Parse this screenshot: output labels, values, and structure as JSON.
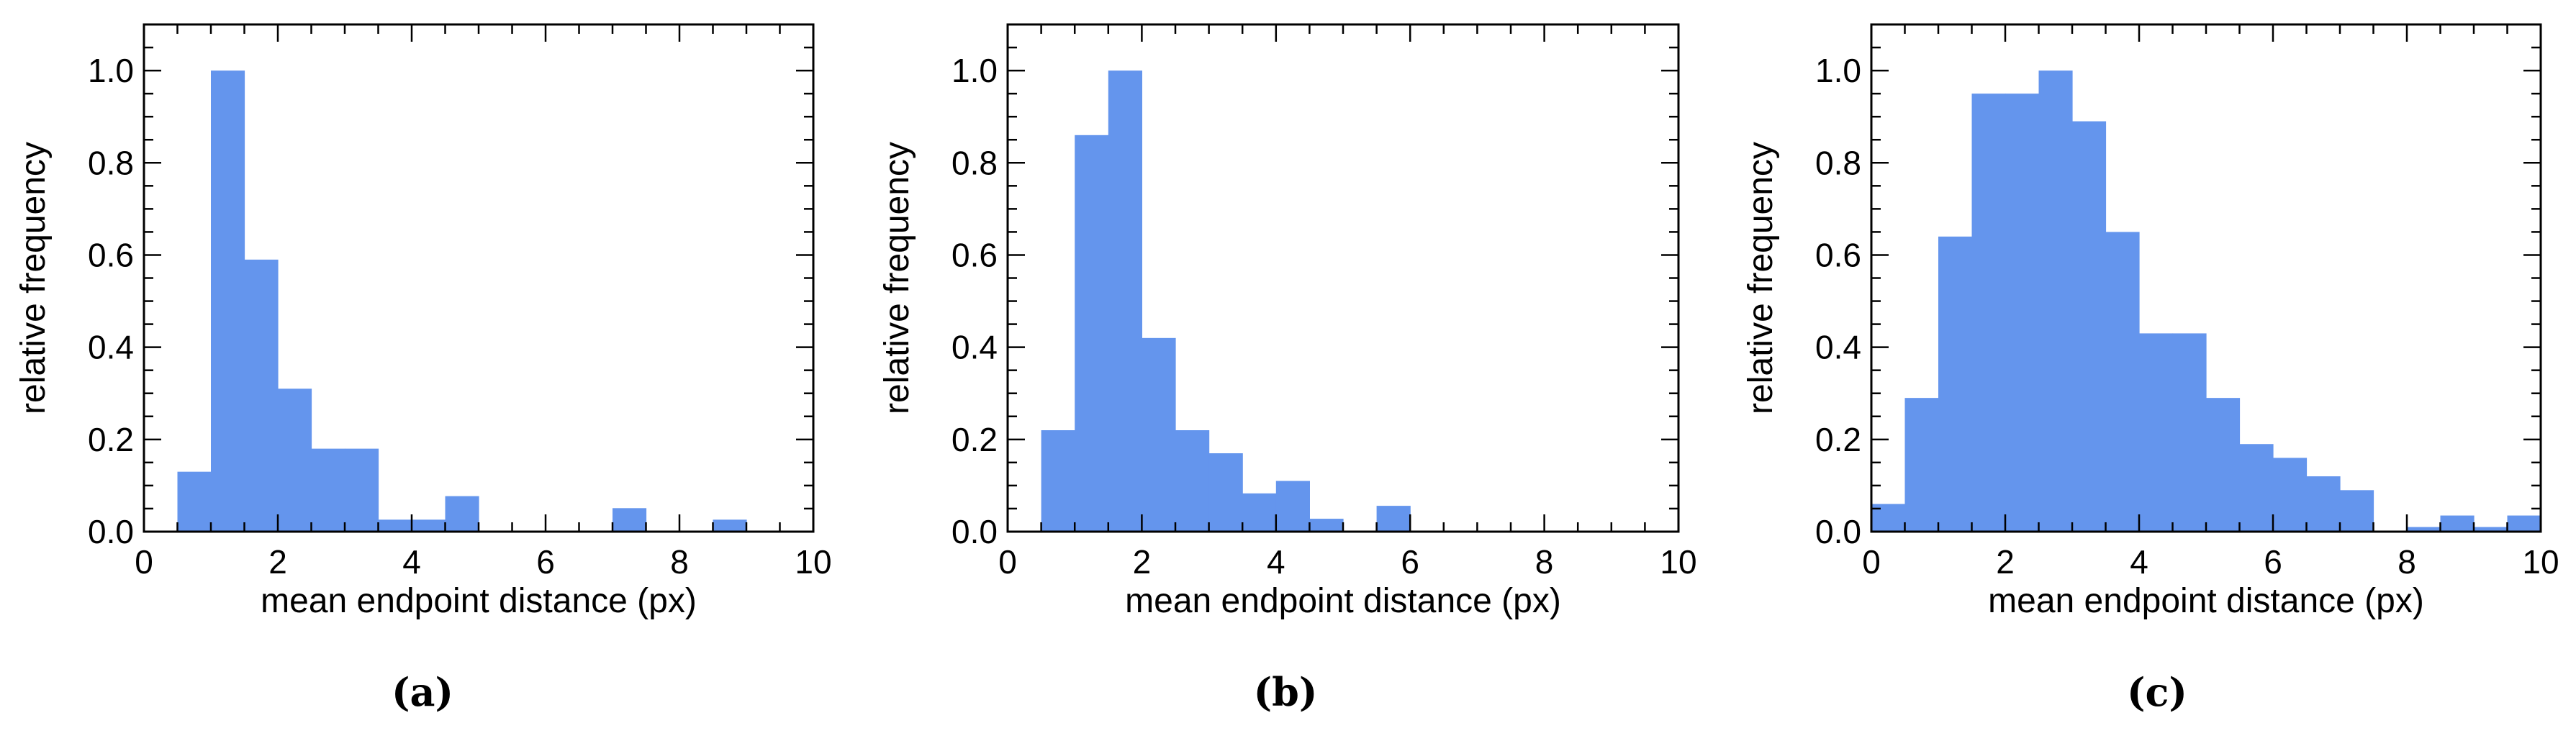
{
  "style": {
    "bar_color": "#6495ED",
    "axis_color": "#000000"
  },
  "captions": [
    "(a)",
    "(b)",
    "(c)"
  ],
  "chart_data": [
    {
      "type": "bar",
      "panel": "(a)",
      "title": "",
      "xlabel": "mean endpoint distance (px)",
      "ylabel": "relative frequency",
      "xlim": [
        0,
        10
      ],
      "ylim": [
        0,
        1.1
      ],
      "xticks": [
        0,
        2,
        4,
        6,
        8,
        10
      ],
      "yticks": [
        0.0,
        0.2,
        0.4,
        0.6,
        0.8,
        1.0
      ],
      "xtick_labels": [
        "0",
        "2",
        "4",
        "6",
        "8",
        "10"
      ],
      "ytick_labels": [
        "0.0",
        "0.2",
        "0.4",
        "0.6",
        "0.8",
        "1.0"
      ],
      "bin_width": 0.5,
      "bins": [
        {
          "x0": 0.5,
          "value": 0.13
        },
        {
          "x0": 1.0,
          "value": 1.0
        },
        {
          "x0": 1.5,
          "value": 0.59
        },
        {
          "x0": 2.0,
          "value": 0.31
        },
        {
          "x0": 2.5,
          "value": 0.18
        },
        {
          "x0": 3.0,
          "value": 0.18
        },
        {
          "x0": 3.5,
          "value": 0.026
        },
        {
          "x0": 4.0,
          "value": 0.026
        },
        {
          "x0": 4.5,
          "value": 0.077
        },
        {
          "x0": 7.0,
          "value": 0.051
        },
        {
          "x0": 8.5,
          "value": 0.026
        }
      ]
    },
    {
      "type": "bar",
      "panel": "(b)",
      "title": "",
      "xlabel": "mean endpoint distance (px)",
      "ylabel": "relative frequency",
      "xlim": [
        0,
        10
      ],
      "ylim": [
        0,
        1.1
      ],
      "xticks": [
        0,
        2,
        4,
        6,
        8,
        10
      ],
      "yticks": [
        0.0,
        0.2,
        0.4,
        0.6,
        0.8,
        1.0
      ],
      "xtick_labels": [
        "0",
        "2",
        "4",
        "6",
        "8",
        "10"
      ],
      "ytick_labels": [
        "0.0",
        "0.2",
        "0.4",
        "0.6",
        "0.8",
        "1.0"
      ],
      "bin_width": 0.5,
      "bins": [
        {
          "x0": 0.5,
          "value": 0.22
        },
        {
          "x0": 1.0,
          "value": 0.86
        },
        {
          "x0": 1.5,
          "value": 1.0
        },
        {
          "x0": 2.0,
          "value": 0.42
        },
        {
          "x0": 2.5,
          "value": 0.22
        },
        {
          "x0": 3.0,
          "value": 0.17
        },
        {
          "x0": 3.5,
          "value": 0.083
        },
        {
          "x0": 4.0,
          "value": 0.11
        },
        {
          "x0": 4.5,
          "value": 0.028
        },
        {
          "x0": 5.5,
          "value": 0.056
        }
      ]
    },
    {
      "type": "bar",
      "panel": "(c)",
      "title": "",
      "xlabel": "mean endpoint distance (px)",
      "ylabel": "relative frequency",
      "xlim": [
        0,
        10
      ],
      "ylim": [
        0,
        1.1
      ],
      "xticks": [
        0,
        2,
        4,
        6,
        8,
        10
      ],
      "yticks": [
        0.0,
        0.2,
        0.4,
        0.6,
        0.8,
        1.0
      ],
      "xtick_labels": [
        "0",
        "2",
        "4",
        "6",
        "8",
        "10"
      ],
      "ytick_labels": [
        "0.0",
        "0.2",
        "0.4",
        "0.6",
        "0.8",
        "1.0"
      ],
      "bin_width": 0.5,
      "bins": [
        {
          "x0": 0.0,
          "value": 0.06
        },
        {
          "x0": 0.5,
          "value": 0.29
        },
        {
          "x0": 1.0,
          "value": 0.64
        },
        {
          "x0": 1.5,
          "value": 0.95
        },
        {
          "x0": 2.0,
          "value": 0.95
        },
        {
          "x0": 2.5,
          "value": 1.0
        },
        {
          "x0": 3.0,
          "value": 0.89
        },
        {
          "x0": 3.5,
          "value": 0.65
        },
        {
          "x0": 4.0,
          "value": 0.43
        },
        {
          "x0": 4.5,
          "value": 0.43
        },
        {
          "x0": 5.0,
          "value": 0.29
        },
        {
          "x0": 5.5,
          "value": 0.19
        },
        {
          "x0": 6.0,
          "value": 0.16
        },
        {
          "x0": 6.5,
          "value": 0.12
        },
        {
          "x0": 7.0,
          "value": 0.09
        },
        {
          "x0": 7.5,
          "value": 0.0
        },
        {
          "x0": 8.0,
          "value": 0.01
        },
        {
          "x0": 8.5,
          "value": 0.035
        },
        {
          "x0": 9.0,
          "value": 0.01
        },
        {
          "x0": 9.5,
          "value": 0.035
        }
      ]
    }
  ]
}
